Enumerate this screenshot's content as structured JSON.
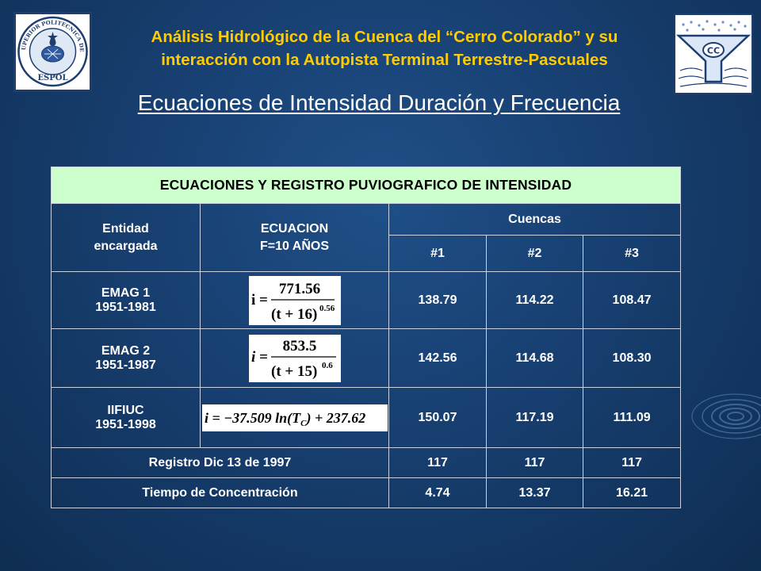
{
  "header": {
    "title_line1": "Análisis Hidrológico de la Cuenca del “Cerro Colorado” y su",
    "title_line2": "interacción con la Autopista Terminal Terrestre-Pascuales",
    "subtitle": "Ecuaciones de Intensidad Duración y Frecuencia"
  },
  "logos": {
    "left": {
      "icon": "espol-seal-icon",
      "top_text": "ESCUELA SUPERIOR POLITECNICA DEL LITORAL",
      "bottom_text": "ESPOL"
    },
    "right": {
      "icon": "funnel-logo-icon",
      "text": "CC"
    }
  },
  "table": {
    "title": "ECUACIONES Y REGISTRO PUVIOGRAFICO DE INTENSIDAD",
    "col_entity": "Entidad encargada",
    "col_equation": "ECUACION F=10 AÑOS",
    "col_basins": "Cuencas",
    "basins": [
      "#1",
      "#2",
      "#3"
    ],
    "rows": [
      {
        "entity": "EMAG 1",
        "period": "1951-1981",
        "formula": {
          "lhs": "i =",
          "num": "771.56",
          "den": "(t + 16)",
          "exp": "0.56"
        },
        "values": [
          "138.79",
          "114.22",
          "108.47"
        ]
      },
      {
        "entity": "EMAG 2",
        "period": "1951-1987",
        "formula": {
          "lhs": "i =",
          "num": "853.5",
          "den": "(t + 15)",
          "exp": "0.6"
        },
        "values": [
          "142.56",
          "114.68",
          "108.30"
        ]
      },
      {
        "entity": "IIFIUC",
        "period": "1951-1998",
        "formula": {
          "lhs": "i = −37.509 ln(T",
          "sub": "C",
          "rhs": ") + 237.62"
        },
        "values": [
          "150.07",
          "117.19",
          "111.09"
        ]
      }
    ],
    "record": {
      "label": "Registro Dic 13 de 1997",
      "values": [
        "117",
        "117",
        "117"
      ]
    },
    "concentration": {
      "label": "Tiempo de Concentración",
      "values": [
        "4.74",
        "13.37",
        "16.21"
      ]
    }
  },
  "colors": {
    "title": "#ffcc00",
    "header_bg": "#ccffcc",
    "background": "#173f70"
  }
}
